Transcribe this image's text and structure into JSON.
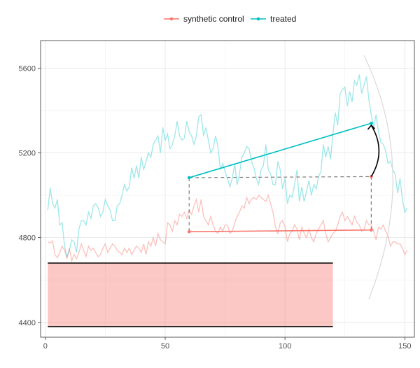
{
  "chart_data": {
    "type": "line",
    "title": "",
    "xlabel": "",
    "ylabel": "",
    "xlim": [
      -2,
      154
    ],
    "ylim": [
      4330,
      5730
    ],
    "x_ticks": [
      0,
      50,
      100,
      150
    ],
    "x_tick_labels": [
      "0",
      "50",
      "100",
      "150"
    ],
    "y_ticks": [
      4400,
      4800,
      5200,
      5600
    ],
    "y_tick_labels": [
      "4400",
      "4800",
      "5200",
      "5600"
    ],
    "grid": true,
    "legend_position": "top",
    "legend": [
      {
        "label": "synthetic control",
        "color": "#F8766D"
      },
      {
        "label": "treated",
        "color": "#00BFC4"
      }
    ],
    "series": [
      {
        "name": "synthetic control",
        "color": "#F8766D",
        "opacity": 0.45,
        "x": [
          1,
          2,
          3,
          4,
          5,
          6,
          7,
          8,
          9,
          10,
          11,
          12,
          13,
          14,
          15,
          16,
          17,
          18,
          19,
          20,
          21,
          22,
          23,
          24,
          25,
          26,
          27,
          28,
          29,
          30,
          31,
          32,
          33,
          34,
          35,
          36,
          37,
          38,
          39,
          40,
          41,
          42,
          43,
          44,
          45,
          46,
          47,
          48,
          49,
          50,
          51,
          52,
          53,
          54,
          55,
          56,
          57,
          58,
          59,
          60,
          61,
          62,
          63,
          64,
          65,
          66,
          67,
          68,
          69,
          70,
          71,
          72,
          73,
          74,
          75,
          76,
          77,
          78,
          79,
          80,
          81,
          82,
          83,
          84,
          85,
          86,
          87,
          88,
          89,
          90,
          91,
          92,
          93,
          94,
          95,
          96,
          97,
          98,
          99,
          100,
          101,
          102,
          103,
          104,
          105,
          106,
          107,
          108,
          109,
          110,
          111,
          112,
          113,
          114,
          115,
          116,
          117,
          118,
          119,
          120,
          121,
          122,
          123,
          124,
          125,
          126,
          127,
          128,
          129,
          130,
          131,
          132,
          133,
          134,
          135,
          136,
          137,
          138,
          139,
          140,
          141,
          142,
          143,
          144,
          145,
          146,
          147,
          148,
          149,
          150,
          151
        ],
        "values": [
          4780,
          4775,
          4785,
          4720,
          4705,
          4730,
          4760,
          4740,
          4700,
          4750,
          4690,
          4720,
          4700,
          4730,
          4770,
          4740,
          4710,
          4760,
          4740,
          4750,
          4730,
          4710,
          4720,
          4750,
          4770,
          4730,
          4750,
          4770,
          4760,
          4740,
          4730,
          4720,
          4750,
          4730,
          4750,
          4720,
          4740,
          4760,
          4750,
          4730,
          4770,
          4720,
          4780,
          4760,
          4800,
          4760,
          4820,
          4790,
          4780,
          4770,
          4870,
          4860,
          4830,
          4880,
          4860,
          4910,
          4900,
          4920,
          4890,
          4930,
          4910,
          4950,
          4980,
          4920,
          4980,
          4900,
          4880,
          4860,
          4900,
          4860,
          4830,
          4820,
          4850,
          4830,
          4860,
          4860,
          4820,
          4830,
          4870,
          4900,
          4920,
          4950,
          4940,
          4990,
          4960,
          4980,
          4990,
          4980,
          5000,
          4990,
          4980,
          4970,
          5000,
          4960,
          4920,
          4850,
          4820,
          4870,
          4880,
          4850,
          4780,
          4820,
          4830,
          4860,
          4840,
          4790,
          4850,
          4820,
          4800,
          4840,
          4800,
          4780,
          4820,
          4840,
          4860,
          4880,
          4820,
          4780,
          4800,
          4820,
          4830,
          4860,
          4900,
          4920,
          4880,
          4900,
          4880,
          4860,
          4900,
          4870,
          4860,
          4830,
          4840,
          4880,
          4860,
          4860,
          4830,
          4790,
          4850,
          4840,
          4860,
          4830,
          4810,
          4760,
          4780,
          4780,
          4770,
          4770,
          4750,
          4720,
          4740
        ]
      },
      {
        "name": "treated",
        "color": "#00BFC4",
        "opacity": 0.38,
        "x": [
          1,
          2,
          3,
          4,
          5,
          6,
          7,
          8,
          9,
          10,
          11,
          12,
          13,
          14,
          15,
          16,
          17,
          18,
          19,
          20,
          21,
          22,
          23,
          24,
          25,
          26,
          27,
          28,
          29,
          30,
          31,
          32,
          33,
          34,
          35,
          36,
          37,
          38,
          39,
          40,
          41,
          42,
          43,
          44,
          45,
          46,
          47,
          48,
          49,
          50,
          51,
          52,
          53,
          54,
          55,
          56,
          57,
          58,
          59,
          60,
          61,
          62,
          63,
          64,
          65,
          66,
          67,
          68,
          69,
          70,
          71,
          72,
          73,
          74,
          75,
          76,
          77,
          78,
          79,
          80,
          81,
          82,
          83,
          84,
          85,
          86,
          87,
          88,
          89,
          90,
          91,
          92,
          93,
          94,
          95,
          96,
          97,
          98,
          99,
          100,
          101,
          102,
          103,
          104,
          105,
          106,
          107,
          108,
          109,
          110,
          111,
          112,
          113,
          114,
          115,
          116,
          117,
          118,
          119,
          120,
          121,
          122,
          123,
          124,
          125,
          126,
          127,
          128,
          129,
          130,
          131,
          132,
          133,
          134,
          135,
          136,
          137,
          138,
          139,
          140,
          141,
          142,
          143,
          144,
          145,
          146,
          147,
          148,
          149,
          150,
          151
        ],
        "values": [
          4930,
          5035,
          4960,
          4940,
          4980,
          4860,
          4870,
          4760,
          4710,
          4740,
          4790,
          4780,
          4730,
          4840,
          4880,
          4880,
          4860,
          4920,
          4890,
          4950,
          4960,
          4940,
          4900,
          4920,
          4980,
          4950,
          4930,
          4880,
          4880,
          4950,
          4960,
          5000,
          5050,
          5020,
          5040,
          5130,
          5080,
          5140,
          5080,
          5180,
          5120,
          5160,
          5200,
          5180,
          5240,
          5260,
          5280,
          5200,
          5320,
          5260,
          5290,
          5220,
          5240,
          5280,
          5350,
          5280,
          5260,
          5270,
          5350,
          5300,
          5280,
          5240,
          5280,
          5370,
          5380,
          5280,
          5320,
          5260,
          5200,
          5220,
          5280,
          5230,
          5120,
          5150,
          5110,
          5080,
          5040,
          5080,
          5150,
          5050,
          5100,
          5180,
          5200,
          5230,
          5220,
          5160,
          5130,
          5080,
          5050,
          5120,
          5140,
          5240,
          5120,
          5100,
          5050,
          5050,
          5160,
          5120,
          5030,
          5080,
          4960,
          5000,
          4990,
          5050,
          5120,
          4970,
          5040,
          4970,
          5020,
          5070,
          5000,
          5050,
          5030,
          5090,
          5110,
          5240,
          5180,
          5230,
          5170,
          5290,
          5390,
          5330,
          5480,
          5500,
          5510,
          5420,
          5490,
          5440,
          5540,
          5520,
          5570,
          5480,
          5520,
          5560,
          5450,
          5380,
          5320,
          5380,
          5300,
          5250,
          5240,
          5210,
          5150,
          5160,
          5120,
          5100,
          5010,
          5080,
          4980,
          4920,
          4940
        ]
      }
    ],
    "annotations": {
      "band": {
        "x_start": 1,
        "x_end": 120,
        "y_low": 4380,
        "y_high": 4680,
        "fill": "#F8766D",
        "fill_opacity": 0.4
      },
      "control_segment": {
        "x": [
          60,
          136
        ],
        "y": [
          4828,
          4836
        ],
        "color": "#F8766D"
      },
      "treated_segment": {
        "x": [
          60,
          136
        ],
        "y": [
          5083,
          5340
        ],
        "color": "#00BFC4"
      },
      "dashed_projection": {
        "x": [
          60,
          136
        ],
        "y": [
          5083,
          5088
        ],
        "color": "#7f7f7f"
      },
      "dashed_vertical_left": {
        "x": 60,
        "y": [
          4828,
          5083
        ],
        "color": "#7f7f7f"
      },
      "dashed_vertical_right": {
        "x": 136,
        "y": [
          4836,
          5088
        ],
        "color": "#7f7f7f"
      },
      "curved_arrow": {
        "x_from": 136,
        "y_from": 5088,
        "x_to": 136,
        "y_to": 5340,
        "color": "#000000"
      },
      "faint_arc": {
        "x_top": 133,
        "y_top": 5660,
        "x_mid": 145,
        "y_mid": 5100,
        "x_bottom": 135,
        "y_bottom": 4510,
        "color": "#d9d9d9"
      }
    }
  }
}
